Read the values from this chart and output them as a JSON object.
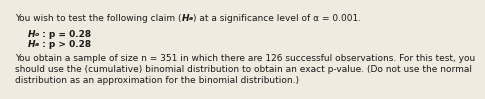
{
  "bg_color": "#f0ebe0",
  "text_color": "#1a1a1a",
  "font_size": 6.5,
  "font_family": "DejaVu Sans",
  "line1_pre": "You wish to test the following claim (",
  "line1_H": "H",
  "line1_sub_a": "a",
  "line1_post": ") at a significance level of α = 0.001.",
  "ho_H": "H",
  "ho_sub": "o",
  "ho_rest": " : p = 0.28",
  "ha_H": "H",
  "ha_sub": "a",
  "ha_rest": " : p > 0.28",
  "para2": "You obtain a sample of size n = 351 in which there are 126 successful observations. For this test, you",
  "para3": "should use the (cumulative) binomial distribution to obtain an exact p-value. (Do not use the normal",
  "para4": "distribution as an approximation for the binomial distribution.)"
}
